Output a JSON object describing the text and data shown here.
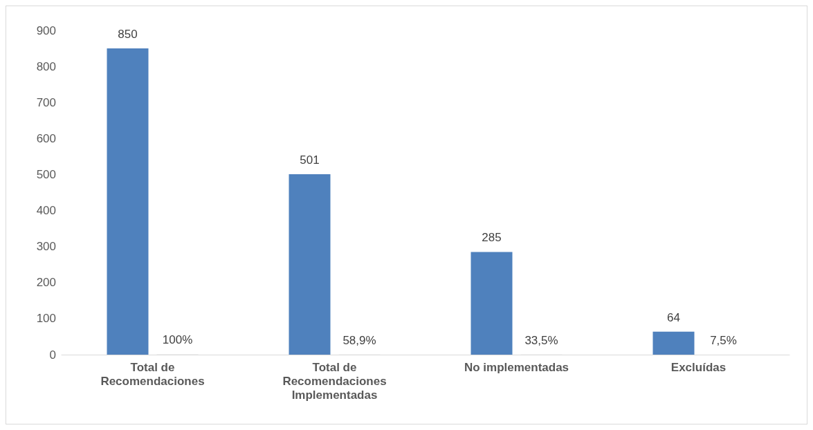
{
  "chart_data": {
    "type": "bar",
    "categories": [
      "Total de\nRecomendaciones",
      "Total de\nRecomendaciones\nImplementadas",
      "No implementadas",
      "Excluídas"
    ],
    "series": [
      {
        "color": "#4f81bd",
        "values": [
          850,
          501,
          285,
          64
        ],
        "value_labels": [
          "850",
          "501",
          "285",
          "64"
        ]
      },
      {
        "color": "#e3e3e3",
        "values": [
          1,
          0.589,
          0.335,
          0.075
        ],
        "value_labels": [
          "100%",
          "58,9%",
          "33,5%",
          "7,5%"
        ]
      }
    ],
    "ylim": [
      0,
      900
    ],
    "yticks": [
      0,
      100,
      200,
      300,
      400,
      500,
      600,
      700,
      800,
      900
    ],
    "grid": false
  }
}
